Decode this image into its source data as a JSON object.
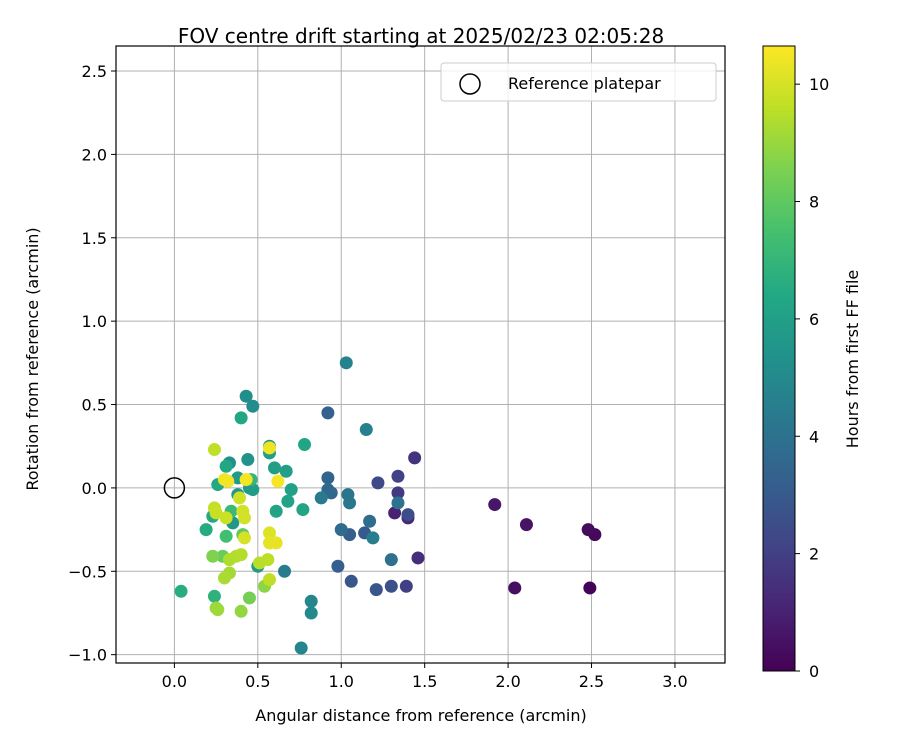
{
  "chart_data": {
    "type": "scatter",
    "title": "FOV centre drift starting at 2025/02/23 02:05:28",
    "xlabel": "Angular distance from reference (arcmin)",
    "ylabel": "Rotation from reference (arcmin)",
    "xlim": [
      -0.35,
      3.3
    ],
    "ylim": [
      -1.05,
      2.65
    ],
    "xticks": [
      0.0,
      0.5,
      1.0,
      1.5,
      2.0,
      2.5,
      3.0
    ],
    "xtick_labels": [
      "0.0",
      "0.5",
      "1.0",
      "1.5",
      "2.0",
      "2.5",
      "3.0"
    ],
    "yticks": [
      -1.0,
      -0.5,
      0.0,
      0.5,
      1.0,
      1.5,
      2.0,
      2.5
    ],
    "ytick_labels": [
      "−1.0",
      "−0.5",
      "0.0",
      "0.5",
      "1.0",
      "1.5",
      "2.0",
      "2.5"
    ],
    "grid": true,
    "legend": {
      "position": "top-right",
      "label": "Reference platepar"
    },
    "reference_point": {
      "x": 0.0,
      "y": 0.0
    },
    "colorbar": {
      "label": "Hours from first FF file",
      "colormap": "viridis",
      "range": [
        0,
        10.65
      ],
      "ticks": [
        0,
        2,
        4,
        6,
        8,
        10
      ],
      "tick_labels": [
        "0",
        "2",
        "4",
        "6",
        "8",
        "10"
      ]
    },
    "points": [
      {
        "x": 2.49,
        "y": -0.6,
        "h": 0.1
      },
      {
        "x": 2.52,
        "y": -0.28,
        "h": 0.2
      },
      {
        "x": 2.48,
        "y": -0.25,
        "h": 0.3
      },
      {
        "x": 2.04,
        "y": -0.6,
        "h": 0.4
      },
      {
        "x": 2.11,
        "y": -0.22,
        "h": 0.55
      },
      {
        "x": 1.92,
        "y": -0.1,
        "h": 0.7
      },
      {
        "x": 1.32,
        "y": -0.15,
        "h": 1.0
      },
      {
        "x": 1.4,
        "y": -0.18,
        "h": 1.2
      },
      {
        "x": 1.46,
        "y": -0.42,
        "h": 1.4
      },
      {
        "x": 1.44,
        "y": 0.18,
        "h": 1.6
      },
      {
        "x": 1.34,
        "y": -0.03,
        "h": 1.8
      },
      {
        "x": 1.39,
        "y": -0.59,
        "h": 2.0
      },
      {
        "x": 1.34,
        "y": 0.07,
        "h": 2.1
      },
      {
        "x": 1.22,
        "y": 0.03,
        "h": 2.3
      },
      {
        "x": 1.4,
        "y": -0.16,
        "h": 2.5
      },
      {
        "x": 1.3,
        "y": -0.59,
        "h": 2.6
      },
      {
        "x": 1.21,
        "y": -0.61,
        "h": 2.8
      },
      {
        "x": 1.06,
        "y": -0.56,
        "h": 2.9
      },
      {
        "x": 1.14,
        "y": -0.27,
        "h": 3.0
      },
      {
        "x": 1.05,
        "y": -0.28,
        "h": 3.1
      },
      {
        "x": 0.98,
        "y": -0.47,
        "h": 3.2
      },
      {
        "x": 0.92,
        "y": 0.45,
        "h": 3.3
      },
      {
        "x": 0.92,
        "y": 0.06,
        "h": 3.4
      },
      {
        "x": 0.94,
        "y": -0.03,
        "h": 3.5
      },
      {
        "x": 0.92,
        "y": -0.01,
        "h": 3.6
      },
      {
        "x": 1.0,
        "y": -0.25,
        "h": 3.7
      },
      {
        "x": 1.17,
        "y": -0.2,
        "h": 3.8
      },
      {
        "x": 1.3,
        "y": -0.43,
        "h": 3.9
      },
      {
        "x": 1.34,
        "y": -0.09,
        "h": 4.0
      },
      {
        "x": 1.04,
        "y": -0.04,
        "h": 4.1
      },
      {
        "x": 1.05,
        "y": -0.09,
        "h": 4.2
      },
      {
        "x": 0.88,
        "y": -0.06,
        "h": 4.3
      },
      {
        "x": 0.66,
        "y": -0.5,
        "h": 4.4
      },
      {
        "x": 1.19,
        "y": -0.3,
        "h": 4.5
      },
      {
        "x": 1.15,
        "y": 0.35,
        "h": 4.6
      },
      {
        "x": 1.03,
        "y": 0.75,
        "h": 4.7
      },
      {
        "x": 0.76,
        "y": -0.96,
        "h": 4.8
      },
      {
        "x": 0.82,
        "y": -0.68,
        "h": 4.9
      },
      {
        "x": 0.82,
        "y": -0.75,
        "h": 5.0
      },
      {
        "x": 0.47,
        "y": 0.49,
        "h": 5.1
      },
      {
        "x": 0.43,
        "y": 0.55,
        "h": 5.2
      },
      {
        "x": 0.33,
        "y": 0.15,
        "h": 5.3
      },
      {
        "x": 0.44,
        "y": 0.17,
        "h": 5.4
      },
      {
        "x": 0.57,
        "y": 0.25,
        "h": 5.5
      },
      {
        "x": 0.38,
        "y": -0.04,
        "h": 5.55
      },
      {
        "x": 0.35,
        "y": -0.21,
        "h": 5.6
      },
      {
        "x": 0.5,
        "y": -0.47,
        "h": 5.7
      },
      {
        "x": 0.38,
        "y": 0.06,
        "h": 5.75
      },
      {
        "x": 0.45,
        "y": 0.0,
        "h": 5.8
      },
      {
        "x": 0.47,
        "y": -0.01,
        "h": 5.85
      },
      {
        "x": 0.57,
        "y": 0.21,
        "h": 5.9
      },
      {
        "x": 0.6,
        "y": 0.12,
        "h": 5.95
      },
      {
        "x": 0.67,
        "y": 0.1,
        "h": 6.0
      },
      {
        "x": 0.7,
        "y": -0.01,
        "h": 6.05
      },
      {
        "x": 0.68,
        "y": -0.08,
        "h": 6.1
      },
      {
        "x": 0.61,
        "y": -0.14,
        "h": 6.15
      },
      {
        "x": 0.77,
        "y": -0.13,
        "h": 6.2
      },
      {
        "x": 0.78,
        "y": 0.26,
        "h": 6.25
      },
      {
        "x": 0.4,
        "y": 0.42,
        "h": 6.3
      },
      {
        "x": 0.31,
        "y": 0.13,
        "h": 6.35
      },
      {
        "x": 0.26,
        "y": 0.02,
        "h": 6.4
      },
      {
        "x": 0.23,
        "y": -0.17,
        "h": 6.45
      },
      {
        "x": 0.19,
        "y": -0.25,
        "h": 6.5
      },
      {
        "x": 0.04,
        "y": -0.62,
        "h": 6.6
      },
      {
        "x": 0.24,
        "y": -0.65,
        "h": 6.8
      },
      {
        "x": 0.46,
        "y": 0.05,
        "h": 7.0
      },
      {
        "x": 0.34,
        "y": -0.14,
        "h": 7.2
      },
      {
        "x": 0.31,
        "y": -0.29,
        "h": 7.4
      },
      {
        "x": 0.41,
        "y": -0.28,
        "h": 8.0
      },
      {
        "x": 0.29,
        "y": -0.41,
        "h": 8.2
      },
      {
        "x": 0.45,
        "y": -0.66,
        "h": 8.4
      },
      {
        "x": 0.23,
        "y": -0.41,
        "h": 8.6
      },
      {
        "x": 0.54,
        "y": -0.59,
        "h": 8.8
      },
      {
        "x": 0.4,
        "y": -0.74,
        "h": 8.9
      },
      {
        "x": 0.25,
        "y": -0.72,
        "h": 9.0
      },
      {
        "x": 0.26,
        "y": -0.73,
        "h": 9.1
      },
      {
        "x": 0.33,
        "y": -0.51,
        "h": 9.2
      },
      {
        "x": 0.3,
        "y": -0.54,
        "h": 9.3
      },
      {
        "x": 0.33,
        "y": -0.43,
        "h": 9.35
      },
      {
        "x": 0.37,
        "y": -0.41,
        "h": 9.4
      },
      {
        "x": 0.4,
        "y": -0.4,
        "h": 9.45
      },
      {
        "x": 0.51,
        "y": -0.45,
        "h": 9.5
      },
      {
        "x": 0.56,
        "y": -0.43,
        "h": 9.55
      },
      {
        "x": 0.57,
        "y": -0.55,
        "h": 9.6
      },
      {
        "x": 0.24,
        "y": 0.23,
        "h": 9.65
      },
      {
        "x": 0.24,
        "y": -0.12,
        "h": 9.7
      },
      {
        "x": 0.25,
        "y": -0.15,
        "h": 9.75
      },
      {
        "x": 0.31,
        "y": -0.18,
        "h": 9.8
      },
      {
        "x": 0.39,
        "y": -0.06,
        "h": 9.85
      },
      {
        "x": 0.41,
        "y": -0.14,
        "h": 9.9
      },
      {
        "x": 0.42,
        "y": -0.18,
        "h": 9.95
      },
      {
        "x": 0.42,
        "y": -0.3,
        "h": 10.0
      },
      {
        "x": 0.57,
        "y": -0.27,
        "h": 10.1
      },
      {
        "x": 0.57,
        "y": -0.33,
        "h": 10.2
      },
      {
        "x": 0.61,
        "y": -0.33,
        "h": 10.3
      },
      {
        "x": 0.57,
        "y": 0.24,
        "h": 10.35
      },
      {
        "x": 0.3,
        "y": 0.05,
        "h": 10.4
      },
      {
        "x": 0.32,
        "y": 0.04,
        "h": 10.45
      },
      {
        "x": 0.43,
        "y": 0.05,
        "h": 10.5
      },
      {
        "x": 0.62,
        "y": 0.04,
        "h": 10.55
      }
    ]
  }
}
